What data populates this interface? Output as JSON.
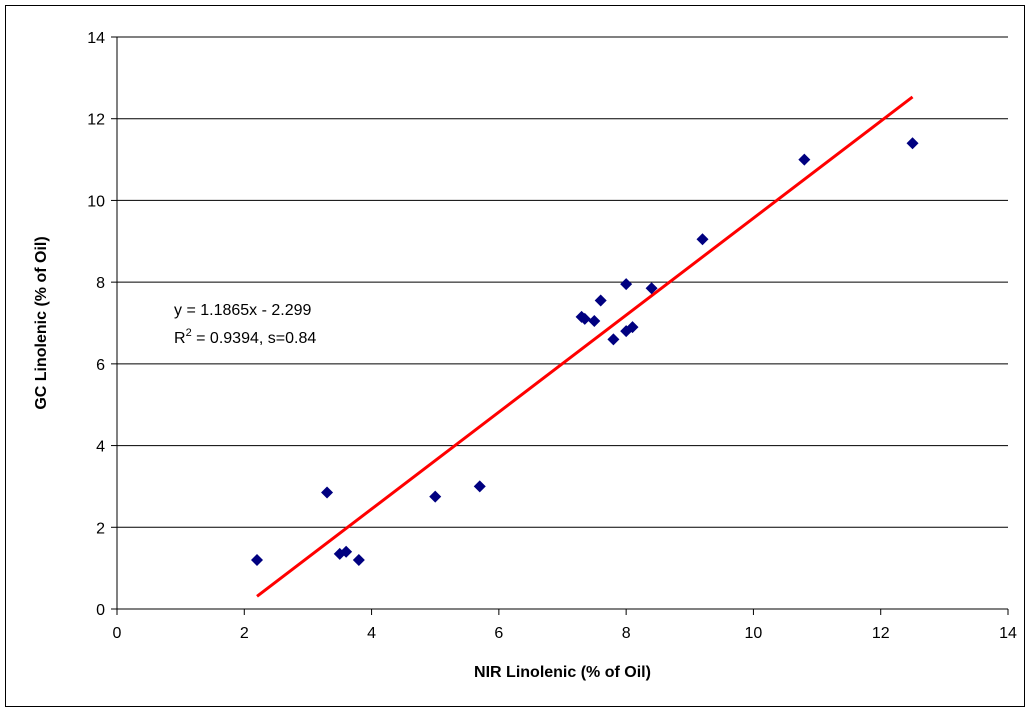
{
  "chart_data": {
    "type": "scatter",
    "xlabel": "NIR Linolenic (% of Oil)",
    "ylabel": "GC Linolenic (% of Oil)",
    "xlim": [
      0,
      14
    ],
    "ylim": [
      0,
      14
    ],
    "x_ticks": [
      0,
      2,
      4,
      6,
      8,
      10,
      12,
      14
    ],
    "y_ticks": [
      0,
      2,
      4,
      6,
      8,
      10,
      12,
      14
    ],
    "grid": "horizontal",
    "legend": "none",
    "marker_color": "#000080",
    "trendline_color": "#ff0000",
    "series": [
      {
        "marker": "diamond",
        "points": [
          {
            "x": 2.2,
            "y": 1.2
          },
          {
            "x": 3.3,
            "y": 2.85
          },
          {
            "x": 3.5,
            "y": 1.35
          },
          {
            "x": 3.6,
            "y": 1.4
          },
          {
            "x": 3.8,
            "y": 1.2
          },
          {
            "x": 5.0,
            "y": 2.75
          },
          {
            "x": 5.7,
            "y": 3.0
          },
          {
            "x": 7.3,
            "y": 7.15
          },
          {
            "x": 7.35,
            "y": 7.1
          },
          {
            "x": 7.5,
            "y": 7.05
          },
          {
            "x": 7.6,
            "y": 7.55
          },
          {
            "x": 7.8,
            "y": 6.6
          },
          {
            "x": 8.0,
            "y": 6.8
          },
          {
            "x": 8.0,
            "y": 7.95
          },
          {
            "x": 8.1,
            "y": 6.9
          },
          {
            "x": 8.4,
            "y": 7.85
          },
          {
            "x": 9.2,
            "y": 9.05
          },
          {
            "x": 10.8,
            "y": 11.0
          },
          {
            "x": 12.5,
            "y": 11.4
          }
        ]
      }
    ],
    "trendline": {
      "slope": 1.1865,
      "intercept": -2.299,
      "x_range": [
        2.2,
        12.5
      ]
    },
    "annotation": {
      "equation": "y = 1.1865x - 2.299",
      "r2_prefix": "R",
      "r2_sup": "2",
      "r2_rest": " = 0.9394, s=0.84"
    }
  }
}
